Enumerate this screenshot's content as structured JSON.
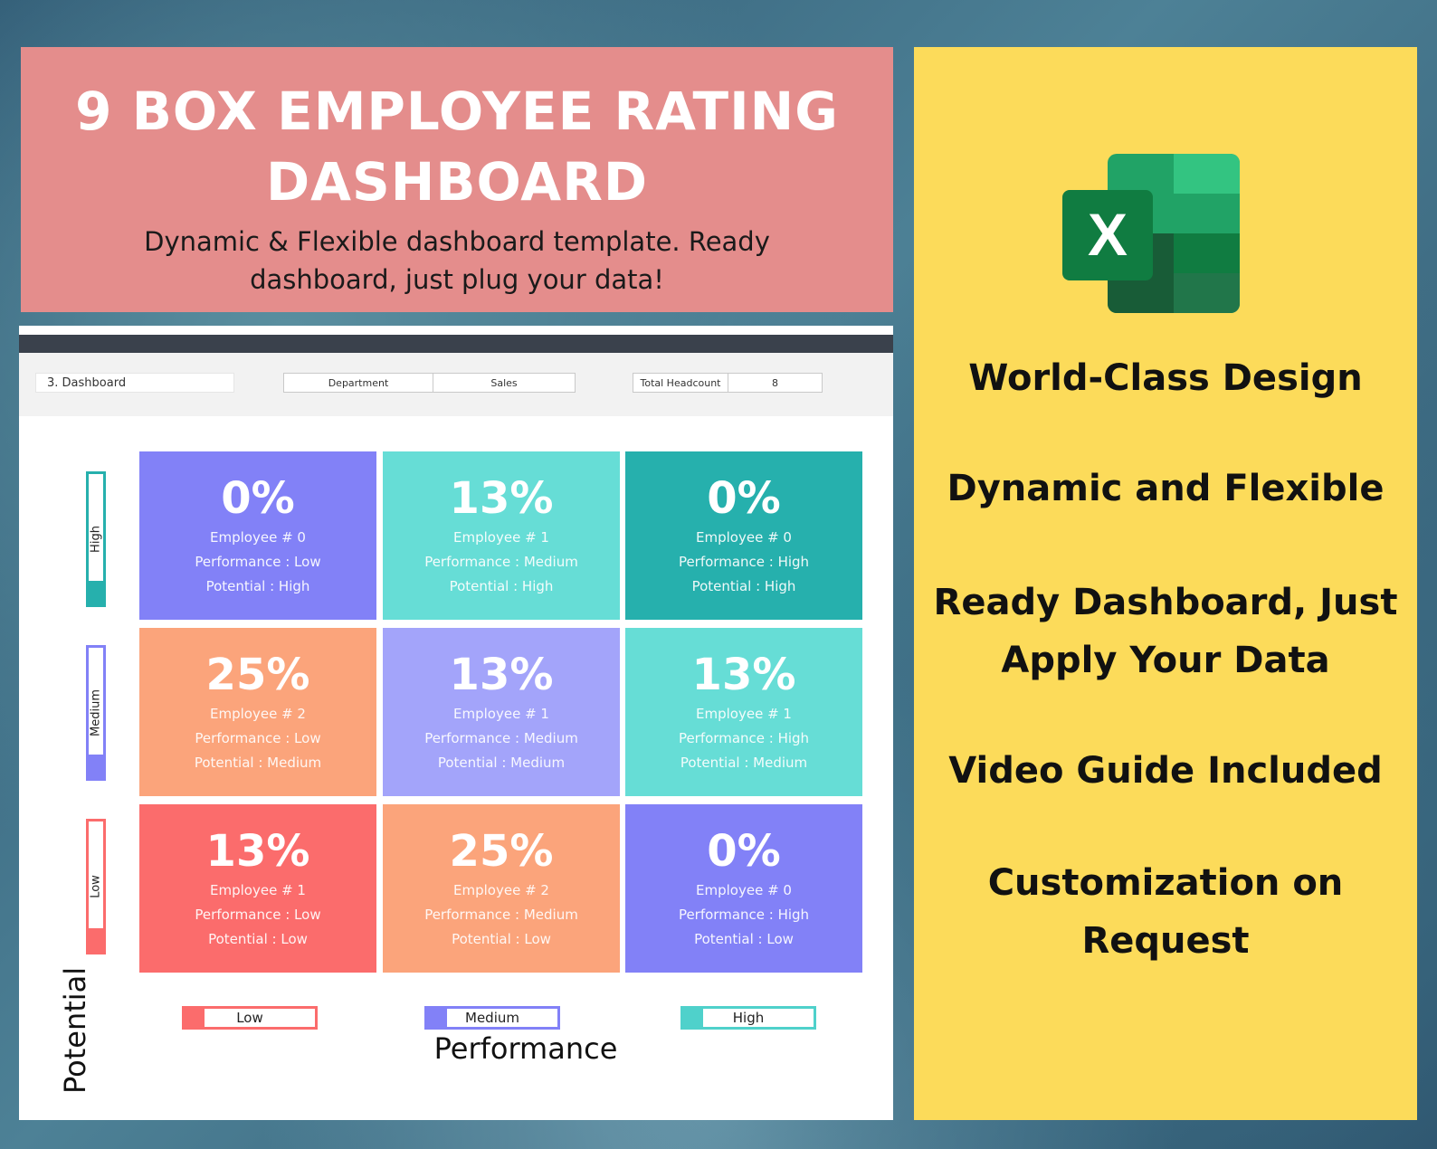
{
  "banner": {
    "title": "9 BOX EMPLOYEE RATING DASHBOARD",
    "subtitle": "Dynamic & Flexible dashboard template. Ready dashboard, just plug your data!"
  },
  "sheet": {
    "name": "3. Dashboard",
    "department_label": "Department",
    "department_value": "Sales",
    "headcount_label": "Total Headcount",
    "headcount_value": "8"
  },
  "grid": {
    "cells": [
      {
        "pct": "0%",
        "employees": "Employee # 0",
        "performance": "Performance : Low",
        "potential": "Potential : High",
        "color": "#8281f7"
      },
      {
        "pct": "13%",
        "employees": "Employee # 1",
        "performance": "Performance : Medium",
        "potential": "Potential : High",
        "color": "#66ddd6"
      },
      {
        "pct": "0%",
        "employees": "Employee # 0",
        "performance": "Performance : High",
        "potential": "Potential : High",
        "color": "#26b0ad"
      },
      {
        "pct": "25%",
        "employees": "Employee # 2",
        "performance": "Performance : Low",
        "potential": "Potential : Medium",
        "color": "#fba47b"
      },
      {
        "pct": "13%",
        "employees": "Employee # 1",
        "performance": "Performance : Medium",
        "potential": "Potential : Medium",
        "color": "#a3a4fa"
      },
      {
        "pct": "13%",
        "employees": "Employee # 1",
        "performance": "Performance : High",
        "potential": "Potential : Medium",
        "color": "#66ddd6"
      },
      {
        "pct": "13%",
        "employees": "Employee # 1",
        "performance": "Performance : Low",
        "potential": "Potential : Low",
        "color": "#fb6c6c"
      },
      {
        "pct": "25%",
        "employees": "Employee # 2",
        "performance": "Performance : Medium",
        "potential": "Potential : Low",
        "color": "#fba47b"
      },
      {
        "pct": "0%",
        "employees": "Employee # 0",
        "performance": "Performance : High",
        "potential": "Potential : Low",
        "color": "#8281f7"
      }
    ],
    "potential_levels": [
      {
        "label": "High",
        "color": "#26b0ad"
      },
      {
        "label": "Medium",
        "color": "#8281f7"
      },
      {
        "label": "Low",
        "color": "#fb6c6c"
      }
    ],
    "performance_levels": [
      {
        "label": "Low",
        "color": "#fb6c6c"
      },
      {
        "label": "Medium",
        "color": "#8281f7"
      },
      {
        "label": "High",
        "color": "#4fd1cb"
      }
    ],
    "y_axis_label": "Potential",
    "x_axis_label": "Performance"
  },
  "panel": {
    "logo_icon": "excel-logo-icon",
    "logo_letter": "X",
    "features": [
      "World-Class Design",
      "Dynamic and Flexible",
      "Ready Dashboard, Just Apply Your Data",
      "Video Guide Included",
      "Customization on Request"
    ]
  }
}
